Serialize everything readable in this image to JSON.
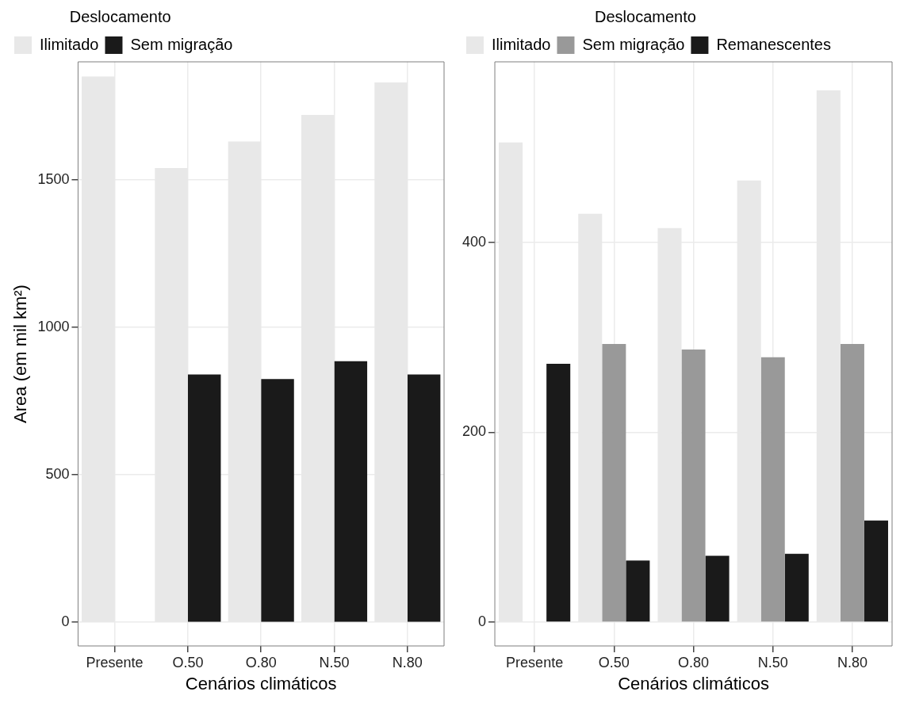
{
  "chart_data": [
    {
      "type": "bar",
      "xlabel": "Cenários climáticos",
      "ylabel": "Area (em mil km²)",
      "legend_title": "Deslocamento",
      "categories": [
        "Presente",
        "O.50",
        "O.80",
        "N.50",
        "N.80"
      ],
      "series": [
        {
          "name": "Ilimitado",
          "color": "#e8e8e8",
          "values": [
            1850,
            1540,
            1630,
            1720,
            1830
          ]
        },
        {
          "name": "Sem migração",
          "color": "#1a1a1a",
          "values": [
            null,
            840,
            825,
            885,
            840
          ]
        }
      ],
      "ylim": [
        -80,
        1900
      ],
      "yticks": [
        0,
        500,
        1000,
        1500
      ],
      "grid": true,
      "legend": "top left"
    },
    {
      "type": "bar",
      "xlabel": "Cenários climáticos",
      "legend_title": "Deslocamento",
      "categories": [
        "Presente",
        "O.50",
        "O.80",
        "N.50",
        "N.80"
      ],
      "series": [
        {
          "name": "Ilimitado",
          "color": "#e8e8e8",
          "values": [
            505,
            430,
            415,
            465,
            560
          ]
        },
        {
          "name": "Sem migração",
          "color": "#999999",
          "values": [
            null,
            293,
            287,
            279,
            293
          ]
        },
        {
          "name": "Remanescentes",
          "color": "#1a1a1a",
          "values": [
            272,
            65,
            70,
            72,
            107
          ]
        }
      ],
      "ylim": [
        -25,
        590
      ],
      "yticks": [
        0,
        200,
        400
      ],
      "grid": true,
      "legend": "top left"
    }
  ]
}
